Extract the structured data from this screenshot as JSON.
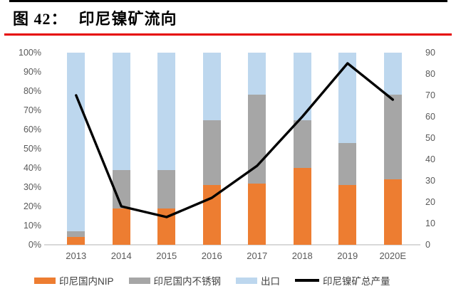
{
  "title": {
    "figure_label": "图 42：",
    "text": "印尼镍矿流向"
  },
  "styles": {
    "accent_red": "#e60000",
    "axis_text": "#595959",
    "axis_line": "#d9d9d9"
  },
  "chart_data": {
    "type": "bar",
    "subtype": "stacked-percent-bars-with-line-overlay",
    "title": "印尼镍矿流向",
    "categories": [
      "2013",
      "2014",
      "2015",
      "2016",
      "2017",
      "2018",
      "2019",
      "2020E"
    ],
    "bar_series": [
      {
        "name": "印尼国内NIP",
        "color": "#ED7D31",
        "values": [
          4,
          19,
          19,
          31,
          32,
          40,
          31,
          34
        ]
      },
      {
        "name": "印尼国内不锈钢",
        "color": "#A6A6A6",
        "values": [
          3,
          20,
          20,
          34,
          46,
          25,
          22,
          44
        ]
      },
      {
        "name": "出口",
        "color": "#BDD7EE",
        "values": [
          93,
          61,
          61,
          35,
          22,
          35,
          47,
          22
        ]
      }
    ],
    "line_series": {
      "name": "印尼镍矿总产量",
      "color": "#000000",
      "axis": "right",
      "values": [
        70,
        18,
        13,
        22,
        37,
        60,
        85,
        68
      ]
    },
    "left_axis": {
      "min": 0,
      "max": 100,
      "unit": "%",
      "ticks": [
        "100%",
        "90%",
        "80%",
        "70%",
        "60%",
        "50%",
        "40%",
        "30%",
        "20%",
        "10%",
        "0%"
      ]
    },
    "right_axis": {
      "min": 0,
      "max": 90,
      "ticks": [
        "90",
        "80",
        "70",
        "60",
        "50",
        "40",
        "30",
        "20",
        "10",
        "0"
      ]
    },
    "grid": false,
    "legend_position": "bottom"
  }
}
